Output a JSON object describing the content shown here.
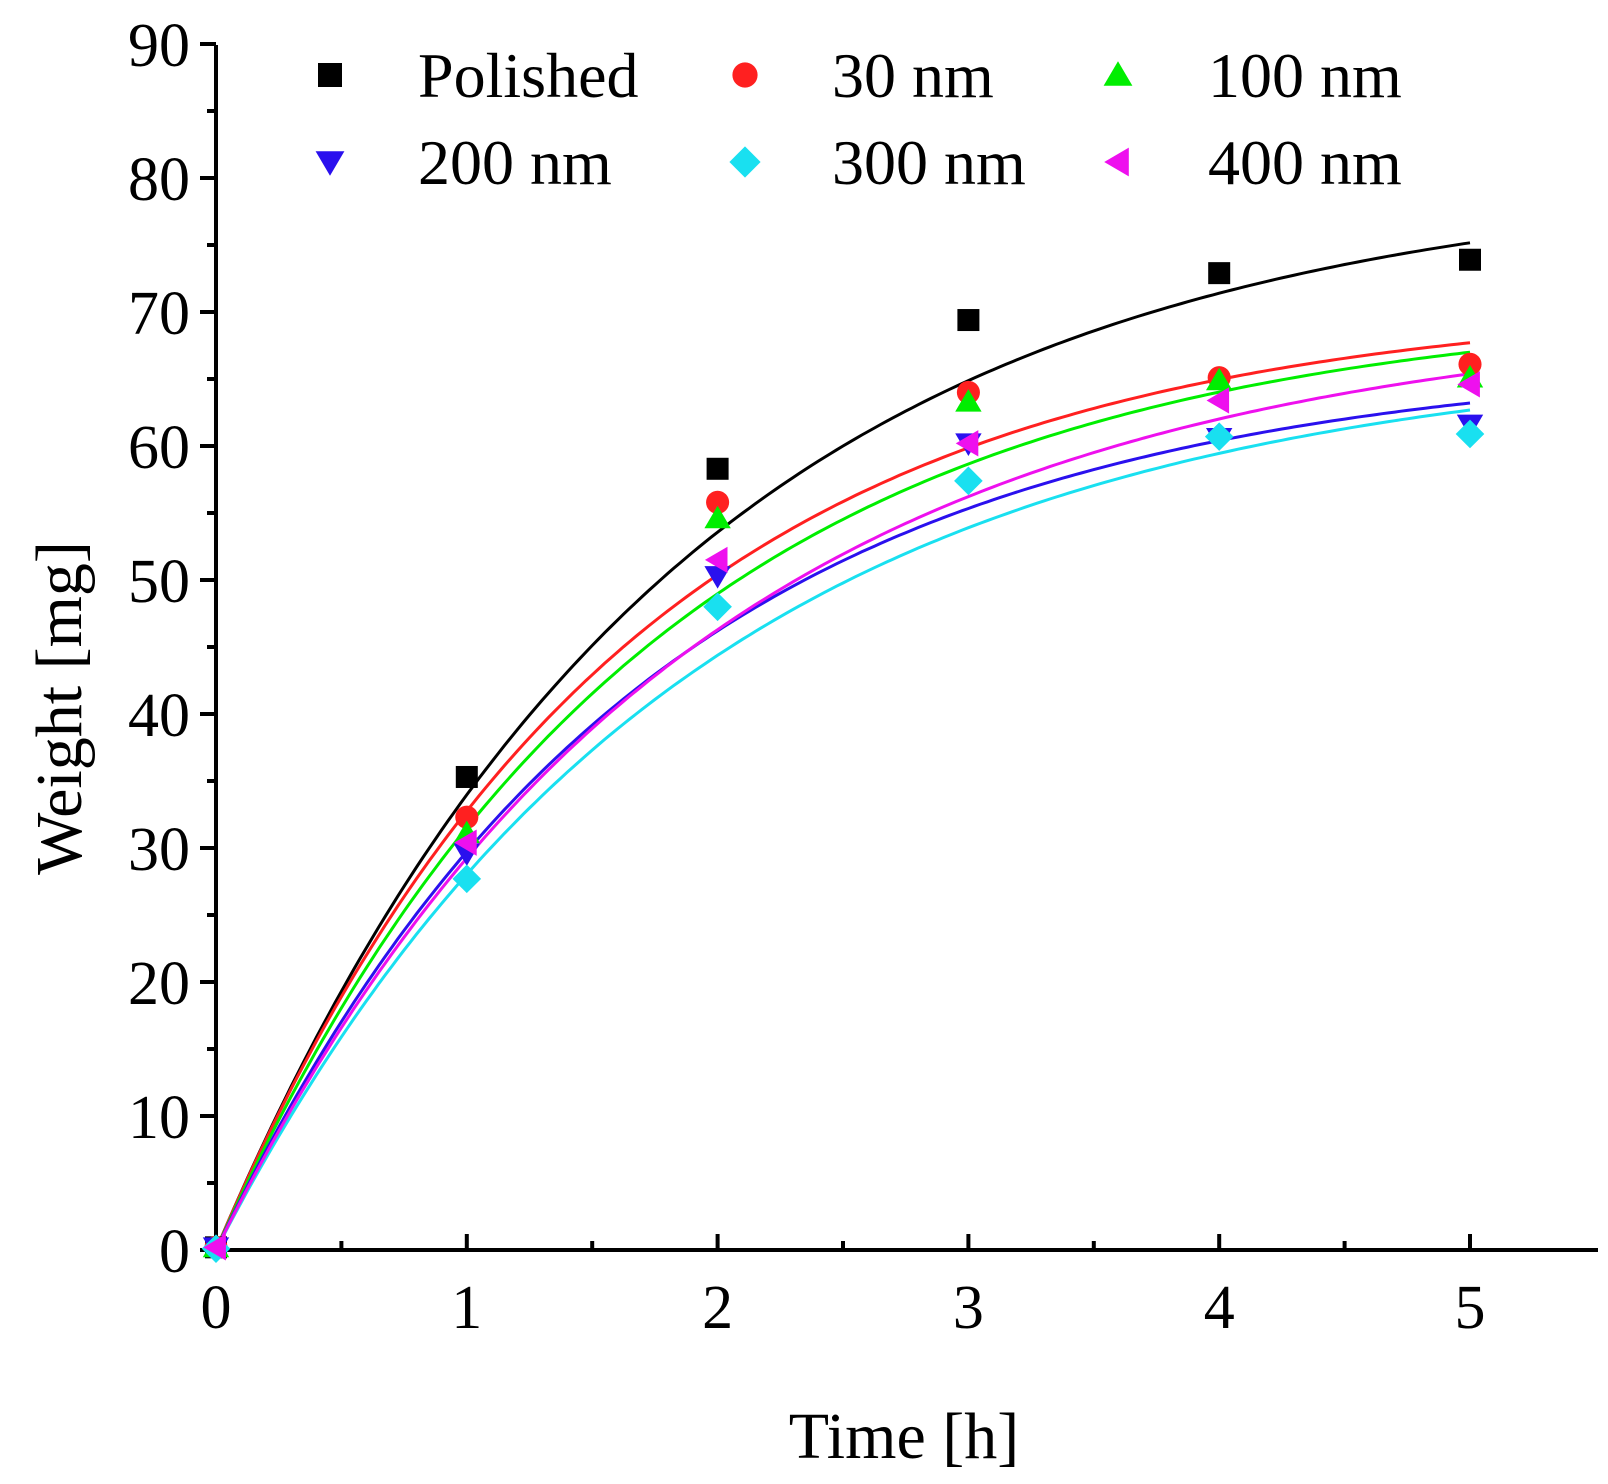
{
  "chart_data": {
    "type": "scatter",
    "title": "",
    "xlabel": "Time [h]",
    "ylabel": "Weight [mg]",
    "xlim": [
      0,
      5.5
    ],
    "ylim": [
      0,
      90
    ],
    "xticks": [
      0,
      1,
      2,
      3,
      4,
      5
    ],
    "yticks": [
      0,
      10,
      20,
      30,
      40,
      50,
      60,
      70,
      80,
      90
    ],
    "xtick_labels": [
      "0",
      "1",
      "2",
      "3",
      "4",
      "5"
    ],
    "ytick_labels": [
      "0",
      "10",
      "20",
      "30",
      "40",
      "50",
      "60",
      "70",
      "80",
      "90"
    ],
    "legend_position": "top",
    "grid": false,
    "fit": "exponential saturation curve per series",
    "series": [
      {
        "name": "Polished",
        "marker": "square",
        "color": "#000000",
        "x": [
          0,
          1,
          2,
          3,
          4,
          5
        ],
        "y": [
          0.2,
          35.3,
          58.3,
          69.4,
          72.9,
          73.9
        ],
        "fit_max": 80.3,
        "fit_k": 0.55
      },
      {
        "name": "30 nm",
        "marker": "circle",
        "color": "#ff2020",
        "x": [
          0,
          1,
          2,
          3,
          4,
          5
        ],
        "y": [
          0.2,
          32.3,
          55.8,
          64.0,
          65.1,
          66.1
        ],
        "fit_max": 70.9,
        "fit_k": 0.62
      },
      {
        "name": "100 nm",
        "marker": "triangle-up",
        "color": "#00ee00",
        "x": [
          0,
          1,
          2,
          3,
          4,
          5
        ],
        "y": [
          0.2,
          31.1,
          54.6,
          63.3,
          64.9,
          65.1
        ],
        "fit_max": 70.7,
        "fit_k": 0.59
      },
      {
        "name": "200 nm",
        "marker": "triangle-down",
        "color": "#2a10ee",
        "x": [
          0,
          1,
          2,
          3,
          4,
          5
        ],
        "y": [
          0.2,
          29.6,
          50.3,
          60.2,
          60.6,
          61.6
        ],
        "fit_max": 66.7,
        "fit_k": 0.59
      },
      {
        "name": "300 nm",
        "marker": "diamond",
        "color": "#19e0f0",
        "x": [
          0,
          1,
          2,
          3,
          4,
          5
        ],
        "y": [
          0.1,
          27.7,
          48.0,
          57.4,
          60.7,
          60.9
        ],
        "fit_max": 67.2,
        "fit_k": 0.54
      },
      {
        "name": "400 nm",
        "marker": "triangle-left",
        "color": "#ee10ee",
        "x": [
          0,
          1,
          2,
          3,
          4,
          5
        ],
        "y": [
          0.2,
          30.4,
          51.5,
          60.2,
          63.4,
          64.6
        ],
        "fit_max": 70.1,
        "fit_k": 0.54
      }
    ]
  }
}
